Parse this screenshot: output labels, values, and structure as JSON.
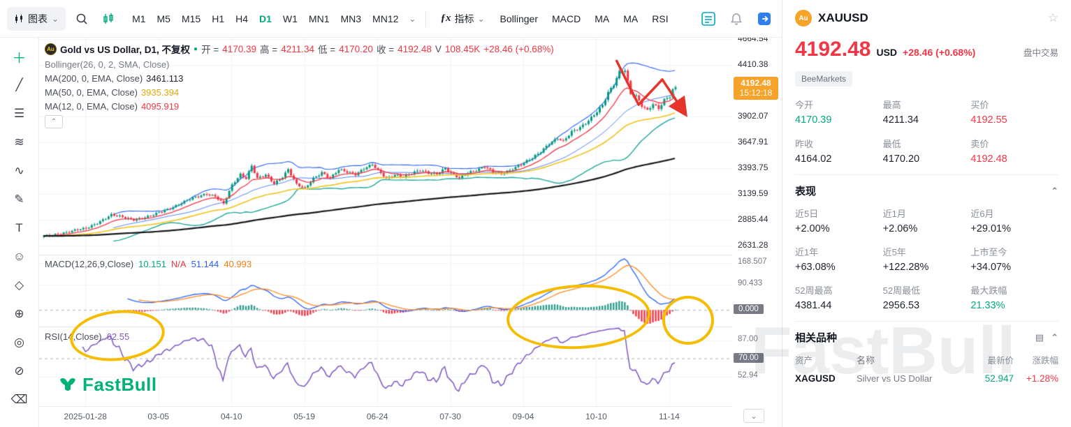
{
  "icons": {
    "chevron_down": "⌄",
    "chevron_up": "⌃",
    "star": "☆",
    "green_dot": "●",
    "list_box": "▤",
    "fx": "ƒx",
    "coin_text": "Au"
  },
  "palette": {
    "up": "#089981",
    "down": "#f23645",
    "accent_green": "#00a97f",
    "badge_orange": "#f7a329",
    "annotation_yellow": "#f5bd00",
    "annotation_red": "#e5342a"
  },
  "toolbar": {
    "chart_menu": "图表",
    "timeframes": [
      "M1",
      "M5",
      "M15",
      "H1",
      "H4",
      "D1",
      "W1",
      "MN1",
      "MN3",
      "MN12"
    ],
    "active_timeframe": "D1",
    "indicators_label": "指标",
    "indicator_buttons": [
      "Bollinger",
      "MACD",
      "MA",
      "MA",
      "RSI"
    ]
  },
  "sidebar": {
    "tools": [
      {
        "name": "crosshair-tool",
        "glyph": "＋",
        "color": "#00b277"
      },
      {
        "name": "trend-line-tool",
        "glyph": "╱"
      },
      {
        "name": "fib-lines-tool",
        "glyph": "☰"
      },
      {
        "name": "pattern-tool",
        "glyph": "≋"
      },
      {
        "name": "wave-tool",
        "glyph": "∿"
      },
      {
        "name": "brush-tool",
        "glyph": "✎"
      },
      {
        "name": "text-tool",
        "glyph": "T"
      },
      {
        "name": "emoji-tool",
        "glyph": "☺"
      },
      {
        "name": "price-tag-tool",
        "glyph": "◇"
      },
      {
        "name": "zoom-tool",
        "glyph": "⊕"
      },
      {
        "name": "shape-tool",
        "glyph": "◎"
      },
      {
        "name": "lock-tool",
        "glyph": "⊘"
      },
      {
        "name": "measure-tool",
        "glyph": "⌫"
      }
    ]
  },
  "legend": {
    "symbol_title": "Gold vs US Dollar, D1, 不复权",
    "open_label": "开 = ",
    "open": "4170.39",
    "high_label": "高 = ",
    "high": "4211.34",
    "low_label": "低 = ",
    "low": "4170.20",
    "close_label": "收 = ",
    "close": "4192.48",
    "volume_label": "V",
    "volume": "108.45K",
    "change": "+28.46 (+0.68%)",
    "bollinger": "Bollinger(26, 0, 2, SMA, Close)",
    "ma200_label": "MA(200, 0, EMA, Close)",
    "ma200": "3461.113",
    "ma50_label": "MA(50, 0, EMA, Close)",
    "ma50": "3935.394",
    "ma12_label": "MA(12, 0, EMA, Close)",
    "ma12": "4095.919",
    "macd_label": "MACD(12,26,9,Close)",
    "macd_v1": "10.151",
    "macd_v2": "N/A",
    "macd_v3": "51.144",
    "macd_v4": "40.993",
    "rsi_label": "RSI(14,Close)",
    "rsi_value": "62.55"
  },
  "badges": {
    "price": "4192.48",
    "time": "15:12:18",
    "macd_zero": "0.000",
    "rsi_level": "70.00"
  },
  "watermark": "FastBull",
  "chart_logo": "FastBull",
  "quote_panel": {
    "symbol": "XAUUSD",
    "price": "4192.48",
    "currency": "USD",
    "change": "+28.46 (+0.68%)",
    "session": "盘中交易",
    "broker": "BeeMarkets",
    "stats": [
      {
        "label": "今开",
        "value": "4170.39",
        "color": "green"
      },
      {
        "label": "最高",
        "value": "4211.34",
        "color": "dark"
      },
      {
        "label": "买价",
        "value": "4192.55",
        "color": "red"
      },
      {
        "label": "昨收",
        "value": "4164.02",
        "color": "dark"
      },
      {
        "label": "最低",
        "value": "4170.20",
        "color": "dark"
      },
      {
        "label": "卖价",
        "value": "4192.48",
        "color": "red"
      }
    ],
    "performance": {
      "title": "表现",
      "items": [
        {
          "label": "近5日",
          "value": "+2.00%",
          "color": "dark"
        },
        {
          "label": "近1月",
          "value": "+2.06%",
          "color": "dark"
        },
        {
          "label": "近6月",
          "value": "+29.01%",
          "color": "dark"
        },
        {
          "label": "近1年",
          "value": "+63.08%",
          "color": "dark"
        },
        {
          "label": "近5年",
          "value": "+122.28%",
          "color": "dark"
        },
        {
          "label": "上市至今",
          "value": "+34.07%",
          "color": "dark"
        },
        {
          "label": "52周最高",
          "value": "4381.44",
          "color": "dark"
        },
        {
          "label": "52周最低",
          "value": "2956.53",
          "color": "dark"
        },
        {
          "label": "最大跌幅",
          "value": "21.33%",
          "color": "green"
        }
      ]
    },
    "related": {
      "title": "相关品种",
      "headers": [
        "资产",
        "名称",
        "最新价",
        "涨跌幅"
      ],
      "rows": [
        {
          "asset": "XAGUSD",
          "name": "Silver vs US Dollar",
          "price": "52.947",
          "price_color": "green",
          "change": "+1.28%",
          "change_color": "red"
        }
      ]
    }
  },
  "chart_data": {
    "type": "candlestick",
    "symbol": "XAUUSD",
    "title": "Gold vs US Dollar, D1",
    "ohlc_today": {
      "open": 4170.39,
      "high": 4211.34,
      "low": 4170.2,
      "close": 4192.48,
      "volume": "108.45K",
      "change_pct": 0.68
    },
    "last_price": 4192.48,
    "ylim": [
      2540,
      4680
    ],
    "y_ticks": [
      4664.54,
      4410.38,
      3902.07,
      3647.91,
      3393.75,
      3139.59,
      2885.44,
      2631.28
    ],
    "x_ticks": [
      "2025-01-28",
      "03-05",
      "04-10",
      "05-19",
      "06-24",
      "07-30",
      "09-04",
      "10-10",
      "11-14"
    ],
    "x_tick_bars": [
      15,
      41,
      67,
      93,
      119,
      145,
      171,
      197,
      223
    ],
    "n_bars": 226,
    "close_anchors": [
      [
        0,
        2720
      ],
      [
        8,
        2762
      ],
      [
        15,
        2798
      ],
      [
        24,
        2930
      ],
      [
        32,
        2888
      ],
      [
        38,
        2918
      ],
      [
        45,
        3002
      ],
      [
        52,
        3085
      ],
      [
        58,
        3142
      ],
      [
        61,
        3118
      ],
      [
        64,
        3038
      ],
      [
        67,
        3222
      ],
      [
        70,
        3332
      ],
      [
        72,
        3298
      ],
      [
        74,
        3422
      ],
      [
        76,
        3292
      ],
      [
        79,
        3322
      ],
      [
        82,
        3238
      ],
      [
        85,
        3312
      ],
      [
        87,
        3385
      ],
      [
        90,
        3232
      ],
      [
        93,
        3188
      ],
      [
        96,
        3292
      ],
      [
        99,
        3355
      ],
      [
        102,
        3295
      ],
      [
        105,
        3375
      ],
      [
        108,
        3352
      ],
      [
        111,
        3335
      ],
      [
        114,
        3395
      ],
      [
        117,
        3428
      ],
      [
        119,
        3365
      ],
      [
        122,
        3288
      ],
      [
        125,
        3332
      ],
      [
        128,
        3312
      ],
      [
        131,
        3338
      ],
      [
        134,
        3368
      ],
      [
        137,
        3348
      ],
      [
        140,
        3342
      ],
      [
        143,
        3392
      ],
      [
        145,
        3338
      ],
      [
        148,
        3292
      ],
      [
        151,
        3352
      ],
      [
        154,
        3378
      ],
      [
        157,
        3408
      ],
      [
        160,
        3348
      ],
      [
        163,
        3338
      ],
      [
        166,
        3378
      ],
      [
        169,
        3418
      ],
      [
        171,
        3442
      ],
      [
        174,
        3488
      ],
      [
        177,
        3558
      ],
      [
        180,
        3642
      ],
      [
        183,
        3688
      ],
      [
        185,
        3652
      ],
      [
        188,
        3748
      ],
      [
        191,
        3798
      ],
      [
        194,
        3868
      ],
      [
        197,
        3948
      ],
      [
        199,
        4008
      ],
      [
        201,
        4132
      ],
      [
        203,
        4218
      ],
      [
        205,
        4348
      ],
      [
        207,
        4368
      ],
      [
        209,
        4128
      ],
      [
        211,
        4098
      ],
      [
        213,
        4002
      ],
      [
        215,
        3958
      ],
      [
        217,
        4028
      ],
      [
        219,
        3988
      ],
      [
        221,
        4072
      ],
      [
        223,
        4102
      ],
      [
        224,
        4162
      ],
      [
        225,
        4192.48
      ]
    ],
    "indicators": {
      "bollinger": [
        26,
        2
      ],
      "ema": [
        12,
        50,
        200
      ],
      "macd": [
        12,
        26,
        9
      ],
      "rsi": 14
    },
    "macd_ylim": [
      -60,
      200
    ],
    "macd_ticks": [
      168.507,
      90.433
    ],
    "rsi_ylim": [
      25,
      100
    ],
    "rsi_ticks": [
      87.0,
      52.94
    ]
  }
}
